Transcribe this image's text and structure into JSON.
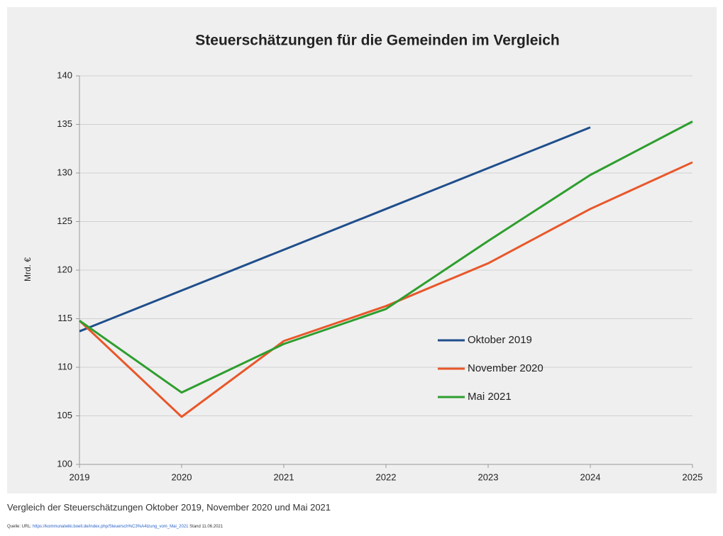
{
  "chart_data": {
    "type": "line",
    "title": "Steuerschätzungen für die Gemeinden im Vergleich",
    "y_label": "Mrd. €",
    "categories": [
      "2019",
      "2020",
      "2021",
      "2022",
      "2023",
      "2024",
      "2025"
    ],
    "series": [
      {
        "name": "Oktober 2019",
        "color": "#1f4e8c",
        "values": [
          113.7,
          117.9,
          122.1,
          126.3,
          130.5,
          134.7,
          null
        ]
      },
      {
        "name": "November 2020",
        "color": "#e8572a",
        "values": [
          114.8,
          104.9,
          112.7,
          116.3,
          120.7,
          126.3,
          131.1
        ]
      },
      {
        "name": "Mai 2021",
        "color": "#2e9e2e",
        "values": [
          114.8,
          107.4,
          112.4,
          116.0,
          123.0,
          129.8,
          135.3
        ]
      }
    ],
    "ylim": [
      100,
      140
    ],
    "yticks": [
      100,
      105,
      110,
      115,
      120,
      125,
      130,
      135,
      140
    ],
    "grid": true,
    "legend_position": "inside-lower-right"
  },
  "caption": "Vergleich der Steuerschätzungen Oktober 2019, November 2020 und Mai 2021",
  "source": {
    "prefix": "Quelle: URL:",
    "url": "https://kommunalwiki.boell.de/index.php/Steuersch%C3%A4tzung_vom_Mai_2021",
    "date": "Stand 11.06.2021"
  }
}
